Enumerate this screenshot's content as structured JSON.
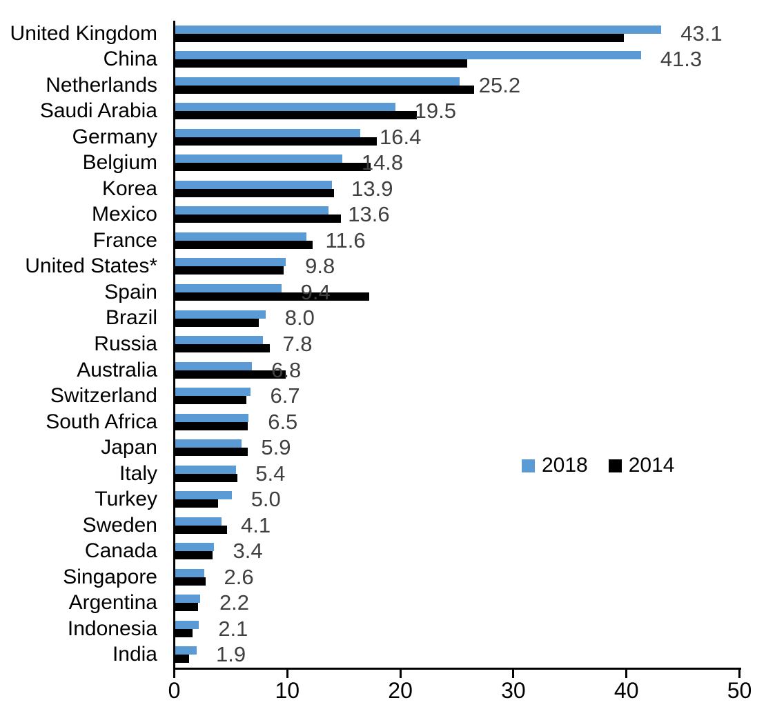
{
  "chart_data": {
    "type": "bar",
    "orientation": "horizontal",
    "title": "",
    "xlabel": "",
    "ylabel": "",
    "xlim": [
      0,
      50
    ],
    "xticks": [
      0,
      10,
      20,
      30,
      40,
      50
    ],
    "xtick_labels": [
      "0",
      "10",
      "20",
      "30",
      "40",
      "50"
    ],
    "grid": false,
    "legend_position": "center-right",
    "categories": [
      "United Kingdom",
      "China",
      "Netherlands",
      "Saudi Arabia",
      "Germany",
      "Belgium",
      "Korea",
      "Mexico",
      "France",
      "United States*",
      "Spain",
      "Brazil",
      "Russia",
      "Australia",
      "Switzerland",
      "South Africa",
      "Japan",
      "Italy",
      "Turkey",
      "Sweden",
      "Canada",
      "Singapore",
      "Argentina",
      "Indonesia",
      "India"
    ],
    "value_labels": [
      "43.1",
      "41.3",
      "25.2",
      "19.5",
      "16.4",
      "14.8",
      "13.9",
      "13.6",
      "11.6",
      "9.8",
      "9.4",
      "8.0",
      "7.8",
      "6.8",
      "6.7",
      "6.5",
      "5.9",
      "5.4",
      "5.0",
      "4.1",
      "3.4",
      "2.6",
      "2.2",
      "2.1",
      "1.9"
    ],
    "series": [
      {
        "name": "2018",
        "color": "#5B9BD5",
        "values": [
          43.1,
          41.3,
          25.2,
          19.5,
          16.4,
          14.8,
          13.9,
          13.6,
          11.6,
          9.8,
          9.4,
          8.0,
          7.8,
          6.8,
          6.7,
          6.5,
          5.9,
          5.4,
          5.0,
          4.1,
          3.4,
          2.6,
          2.2,
          2.1,
          1.9
        ]
      },
      {
        "name": "2014",
        "color": "#000000",
        "values": [
          39.8,
          25.9,
          26.5,
          21.4,
          17.9,
          17.3,
          14.1,
          14.7,
          12.2,
          9.6,
          17.2,
          7.4,
          8.4,
          9.8,
          6.3,
          6.4,
          6.4,
          5.5,
          3.8,
          4.6,
          3.3,
          2.7,
          2.0,
          1.5,
          1.2
        ]
      }
    ]
  },
  "colors": {
    "bar_2018": "#5B9BD5",
    "bar_2014": "#000000",
    "value_label": "#404040",
    "axis": "#000000",
    "text": "#000000",
    "background": "#FFFFFF"
  },
  "layout_numbers": {
    "row_count": 25
  }
}
